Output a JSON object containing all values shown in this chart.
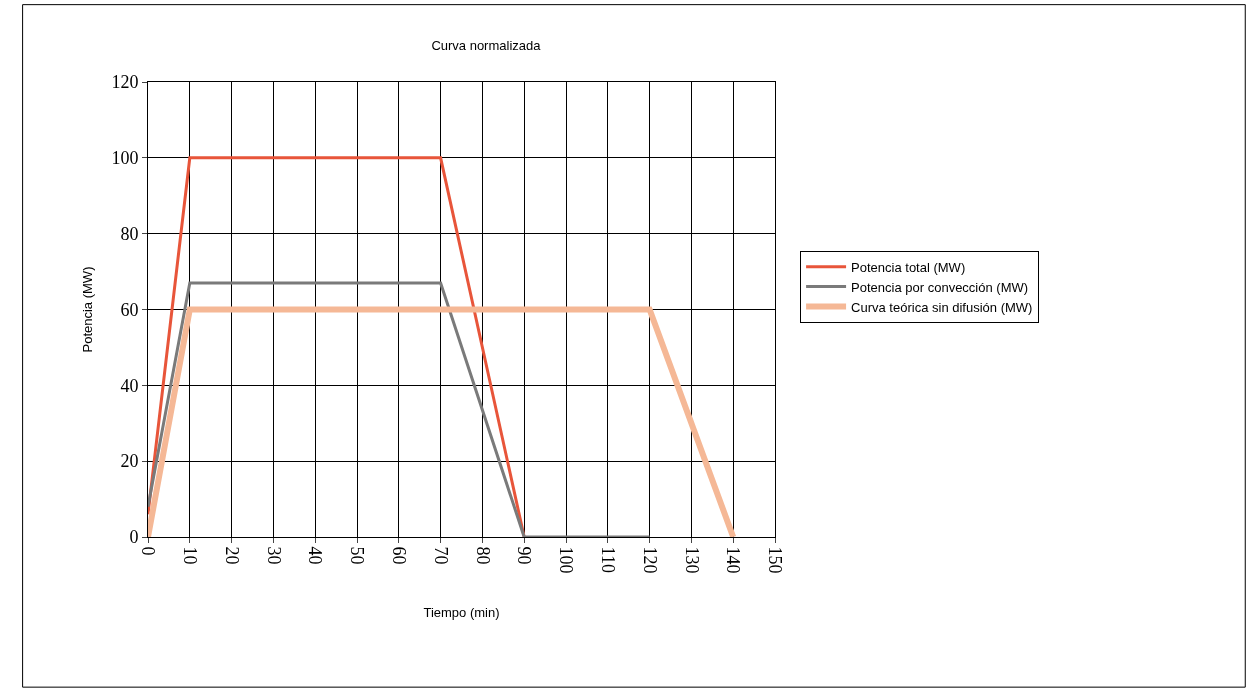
{
  "chart_data": {
    "type": "line",
    "title": "Curva normalizada",
    "xlabel": "Tiempo (min)",
    "ylabel": "Potencia (MW)",
    "xlim": [
      0,
      150
    ],
    "xticks": [
      0,
      10,
      20,
      30,
      40,
      50,
      60,
      70,
      80,
      90,
      100,
      110,
      120,
      130,
      140,
      150
    ],
    "ylim": [
      0,
      120
    ],
    "yticks": [
      0,
      20,
      40,
      60,
      80,
      100,
      120
    ],
    "grid": true,
    "legend": "right",
    "marker": "none",
    "line_style": "solid",
    "series": [
      {
        "name": "Potencia total (MW)",
        "color": "#e8553a",
        "x": [
          0,
          10,
          70,
          90
        ],
        "values": [
          6,
          100,
          100,
          0
        ]
      },
      {
        "name": "Potencia por convección (MW)",
        "color": "#7a7a7a",
        "x": [
          0,
          10,
          70,
          90,
          120
        ],
        "values": [
          8,
          67,
          67,
          0,
          0
        ]
      },
      {
        "name": "Curva teórica sin difusión (MW)",
        "color": "#f5b896",
        "x": [
          0,
          10,
          120,
          140
        ],
        "values": [
          0,
          60,
          60,
          0
        ]
      }
    ]
  }
}
